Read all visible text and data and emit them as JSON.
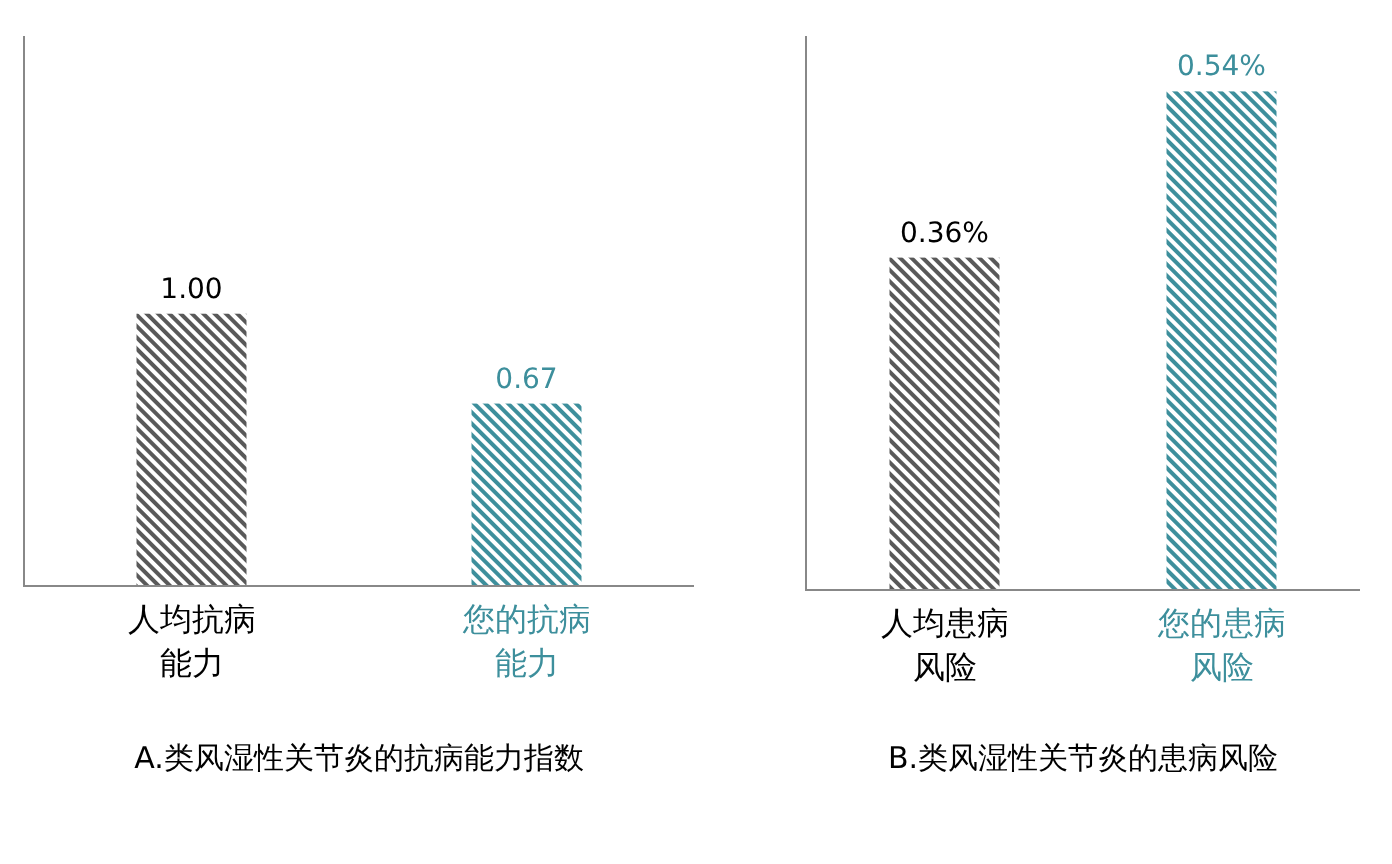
{
  "chart_data": [
    {
      "type": "bar",
      "title": "A.类风湿性关节炎的抗病能力指数",
      "categories": [
        "人均抗病能力",
        "您的抗病能力"
      ],
      "values": [
        1.0,
        0.67
      ],
      "value_labels": [
        "1.00",
        "0.67"
      ],
      "colors": [
        "#595959",
        "#3d8f9c"
      ],
      "ylim": [
        0,
        2.02
      ],
      "tick_labels": "x"
    },
    {
      "type": "bar",
      "title": "B.类风湿性关节炎的患病风险",
      "categories": [
        "人均患病风险",
        "您的患病风险"
      ],
      "values": [
        0.36,
        0.54
      ],
      "value_labels": [
        "0.36%",
        "0.54%"
      ],
      "colors": [
        "#595959",
        "#3d8f9c"
      ],
      "ylim": [
        0,
        0.6
      ],
      "tick_labels": "x"
    }
  ]
}
